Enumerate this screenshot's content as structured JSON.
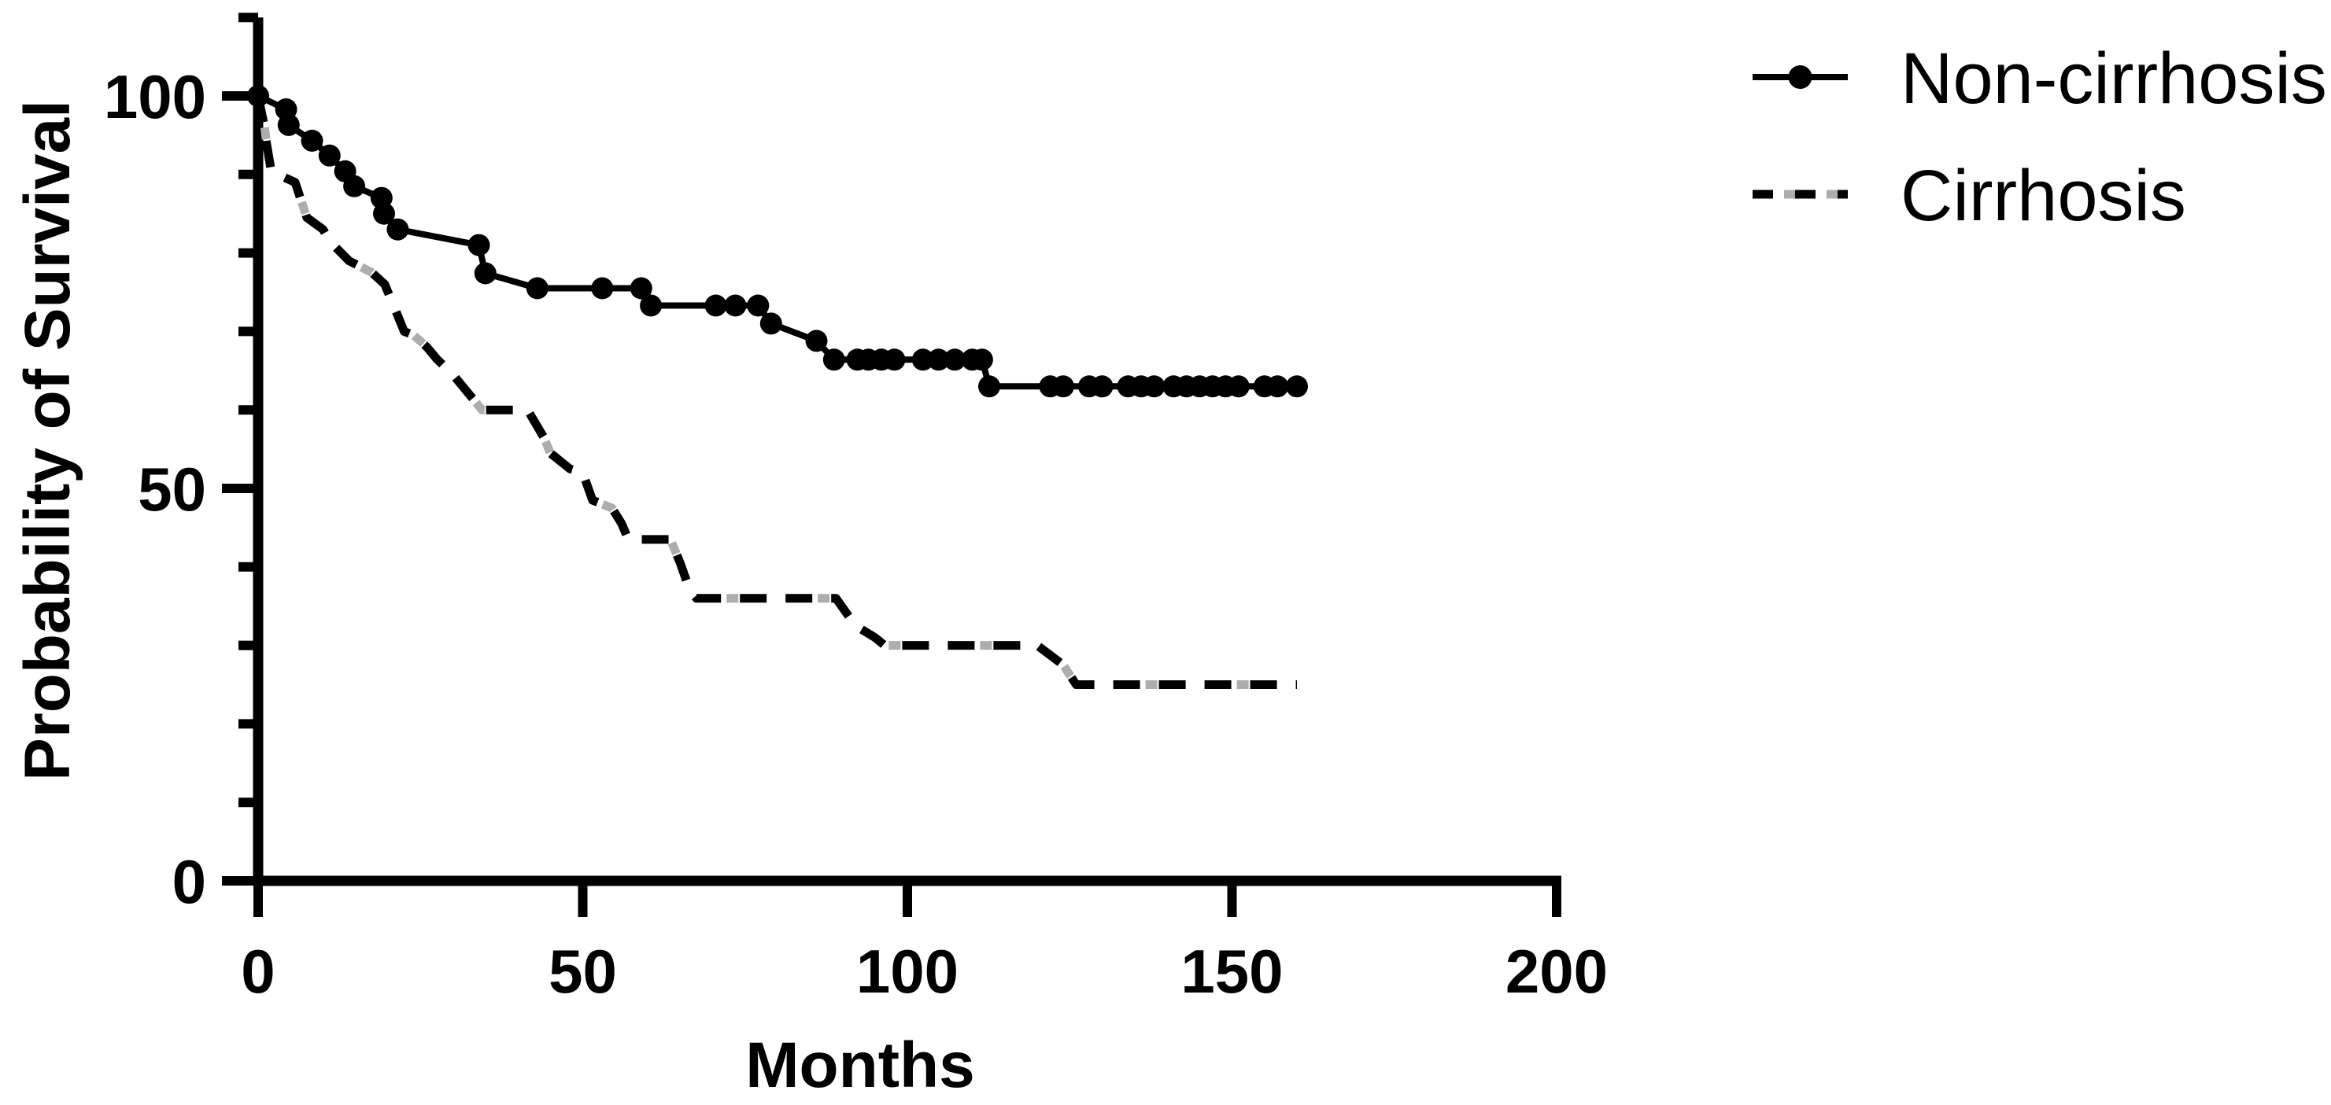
{
  "figure": {
    "background": "#ffffff",
    "ink_color": "#000000",
    "dash_accent_color": "#ADADAD"
  },
  "axes": {
    "x": {
      "title": "Months",
      "tick_labels": [
        "0",
        "50",
        "100",
        "150",
        "200"
      ],
      "ticks": [
        0,
        50,
        100,
        150,
        200
      ],
      "range": [
        0,
        200
      ]
    },
    "y": {
      "title": "Probability of Survival",
      "tick_labels": [
        "0",
        "50",
        "100"
      ],
      "major_ticks": [
        0,
        50,
        100
      ],
      "minor_ticks": [
        10,
        20,
        30,
        40,
        60,
        70,
        80,
        90,
        110
      ],
      "range": [
        0,
        110
      ]
    }
  },
  "legend": {
    "items": [
      {
        "label": "Non-cirrhosis",
        "style": "solid-line-dot-marker"
      },
      {
        "label": "Cirrhosis",
        "style": "two-tone-dashed-line"
      }
    ]
  },
  "chart_data": {
    "type": "line",
    "subtype": "kaplan-meier-survival",
    "title": "",
    "xlabel": "Months",
    "ylabel": "Probability of Survival",
    "xlim": [
      0,
      200
    ],
    "ylim": [
      0,
      110
    ],
    "grid": false,
    "legend_position": "top-right",
    "series": [
      {
        "name": "Non-cirrhosis",
        "line_style": "solid",
        "marker": "circle",
        "color": "#000000",
        "points": [
          [
            0,
            100
          ],
          [
            4.3,
            98.3
          ],
          [
            4.7,
            96.3
          ],
          [
            8.3,
            94.3
          ],
          [
            11,
            92.4
          ],
          [
            13.4,
            90.4
          ],
          [
            14.8,
            88.5
          ],
          [
            19,
            87
          ],
          [
            19.4,
            85
          ],
          [
            21.5,
            83
          ],
          [
            34,
            81
          ],
          [
            35,
            77.4
          ],
          [
            43,
            75.5
          ],
          [
            53,
            75.5
          ],
          [
            59,
            75.5
          ],
          [
            60.5,
            73.3
          ],
          [
            70.5,
            73.3
          ],
          [
            73.5,
            73.3
          ],
          [
            77,
            73.3
          ],
          [
            79,
            71
          ],
          [
            86,
            68.8
          ],
          [
            88.7,
            66.4
          ],
          [
            92.3,
            66.4
          ],
          [
            94,
            66.4
          ],
          [
            96,
            66.4
          ],
          [
            98,
            66.4
          ],
          [
            102.4,
            66.4
          ],
          [
            104.8,
            66.4
          ],
          [
            107.3,
            66.4
          ],
          [
            110,
            66.4
          ],
          [
            111.5,
            66.4
          ],
          [
            112.6,
            63
          ],
          [
            122,
            63
          ],
          [
            124,
            63
          ],
          [
            128,
            63
          ],
          [
            130,
            63
          ],
          [
            134,
            63
          ],
          [
            136,
            63
          ],
          [
            138,
            63
          ],
          [
            141,
            63
          ],
          [
            143,
            63
          ],
          [
            145,
            63
          ],
          [
            147,
            63
          ],
          [
            149,
            63
          ],
          [
            151,
            63
          ],
          [
            155,
            63
          ],
          [
            157,
            63
          ],
          [
            160,
            63
          ]
        ]
      },
      {
        "name": "Cirrhosis",
        "line_style": "dashed",
        "marker": "none",
        "color": "#000000",
        "accent_color": "#ADADAD",
        "points": [
          [
            0,
            100
          ],
          [
            0.5,
            98
          ],
          [
            1,
            96
          ],
          [
            1.3,
            94
          ],
          [
            1.7,
            92
          ],
          [
            2,
            90.5
          ],
          [
            3,
            90
          ],
          [
            5.7,
            89
          ],
          [
            6.7,
            86.5
          ],
          [
            7.5,
            84.5
          ],
          [
            10,
            83
          ],
          [
            11,
            81.5
          ],
          [
            14,
            79
          ],
          [
            17.5,
            77.5
          ],
          [
            19.5,
            76
          ],
          [
            20.5,
            74
          ],
          [
            21.5,
            72
          ],
          [
            22.5,
            70
          ],
          [
            24,
            69.5
          ],
          [
            26,
            68
          ],
          [
            27.5,
            66.5
          ],
          [
            30,
            64.5
          ],
          [
            31.5,
            63
          ],
          [
            34.5,
            60
          ],
          [
            41.5,
            60
          ],
          [
            44,
            56.5
          ],
          [
            45,
            54.5
          ],
          [
            48,
            52.5
          ],
          [
            50,
            52
          ],
          [
            51.5,
            48.5
          ],
          [
            54.5,
            47.5
          ],
          [
            56,
            45.5
          ],
          [
            57,
            43.5
          ],
          [
            63.5,
            43.5
          ],
          [
            65,
            40.5
          ],
          [
            66.5,
            37
          ],
          [
            67.5,
            36
          ],
          [
            89,
            36
          ],
          [
            92,
            32.5
          ],
          [
            95,
            31
          ],
          [
            96.5,
            30
          ],
          [
            120,
            30
          ],
          [
            124,
            27.5
          ],
          [
            126,
            25
          ],
          [
            160,
            25
          ]
        ]
      }
    ]
  }
}
